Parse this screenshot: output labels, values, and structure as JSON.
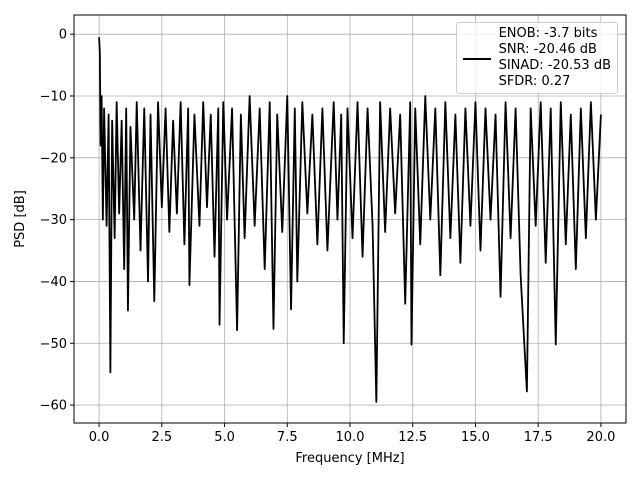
{
  "chart_data": {
    "type": "line",
    "xlabel": "Frequency [MHz]",
    "ylabel": "PSD [dB]",
    "x": [
      0,
      0.03,
      0.06,
      0.1,
      0.15,
      0.2,
      0.3,
      0.38,
      0.45,
      0.52,
      0.62,
      0.7,
      0.8,
      0.9,
      1.0,
      1.08,
      1.15,
      1.25,
      1.4,
      1.5,
      1.65,
      1.8,
      1.95,
      2.05,
      2.2,
      2.35,
      2.5,
      2.65,
      2.8,
      2.95,
      3.1,
      3.25,
      3.4,
      3.55,
      3.6,
      3.8,
      4.0,
      4.15,
      4.3,
      4.45,
      4.6,
      4.75,
      4.8,
      4.95,
      5.1,
      5.3,
      5.5,
      5.65,
      5.8,
      6.0,
      6.2,
      6.4,
      6.6,
      6.8,
      6.95,
      7.1,
      7.3,
      7.5,
      7.65,
      7.8,
      7.9,
      8.1,
      8.3,
      8.5,
      8.7,
      8.9,
      9.1,
      9.35,
      9.5,
      9.65,
      9.75,
      9.9,
      10.1,
      10.3,
      10.5,
      10.7,
      10.9,
      11.05,
      11.2,
      11.4,
      11.6,
      11.8,
      12.0,
      12.2,
      12.4,
      12.45,
      12.6,
      12.8,
      13.0,
      13.2,
      13.4,
      13.6,
      13.8,
      14.0,
      14.2,
      14.4,
      14.6,
      14.8,
      15.0,
      15.2,
      15.4,
      15.6,
      15.8,
      16.0,
      16.2,
      16.4,
      16.6,
      16.8,
      17.05,
      17.2,
      17.4,
      17.6,
      17.8,
      18.0,
      18.2,
      18.4,
      18.6,
      18.8,
      19.0,
      19.2,
      19.4,
      19.6,
      19.8,
      20.0
    ],
    "series": [
      {
        "name": "ENOB: -3.7 bits\nSNR: -20.46 dB\nSINAD: -20.53 dB\nSFDR: 0.27",
        "color": "#000000",
        "values": [
          -0.5,
          -3,
          -18,
          -10,
          -30,
          -12,
          -31,
          -13,
          -54.7,
          -14,
          -33,
          -11,
          -29,
          -14,
          -38,
          -12,
          -44.7,
          -15,
          -30,
          -11,
          -35,
          -12,
          -40,
          -13,
          -43.2,
          -11,
          -28,
          -12,
          -32,
          -14,
          -29,
          -11,
          -34,
          -12,
          -40.6,
          -13,
          -31,
          -11,
          -28,
          -13,
          -36,
          -12,
          -47,
          -11,
          -30,
          -12,
          -47.9,
          -13,
          -33,
          -10,
          -31,
          -12,
          -38,
          -11,
          -47.7,
          -13,
          -32,
          -10,
          -44.5,
          -12,
          -40,
          -11,
          -29,
          -13,
          -34,
          -12,
          -35,
          -11,
          -30,
          -13,
          -50,
          -12,
          -33,
          -11,
          -36,
          -12,
          -31,
          -59.5,
          -11,
          -32,
          -12,
          -29,
          -13,
          -43.6,
          -11,
          -50.2,
          -12,
          -34,
          -10,
          -30,
          -12,
          -39,
          -11,
          -33,
          -13,
          -37,
          -12,
          -31,
          -11,
          -35,
          -12,
          -30,
          -13,
          -42.5,
          -11,
          -33,
          -12,
          -39,
          -57.8,
          -12,
          -31,
          -11,
          -37,
          -12,
          -50.2,
          -11,
          -34,
          -13,
          -38,
          -12,
          -33,
          -11,
          -30,
          -13
        ]
      }
    ],
    "xlim": [
      -1,
      21
    ],
    "ylim": [
      -62.9,
      3.1
    ],
    "xticks": [
      {
        "value": 0,
        "label": "0.0"
      },
      2.5,
      {
        "value": 5,
        "label": "5.0"
      },
      7.5,
      {
        "value": 10,
        "label": "10.0"
      },
      12.5,
      {
        "value": 15,
        "label": "15.0"
      },
      17.5,
      {
        "value": 20,
        "label": "20.0"
      }
    ],
    "yticks": [
      {
        "value": -60,
        "label": "−60"
      },
      {
        "value": -50,
        "label": "−50"
      },
      {
        "value": -40,
        "label": "−40"
      },
      {
        "value": -30,
        "label": "−30"
      },
      {
        "value": -20,
        "label": "−20"
      },
      {
        "value": -10,
        "label": "−10"
      },
      0
    ],
    "grid": true,
    "legend": "upper right"
  }
}
